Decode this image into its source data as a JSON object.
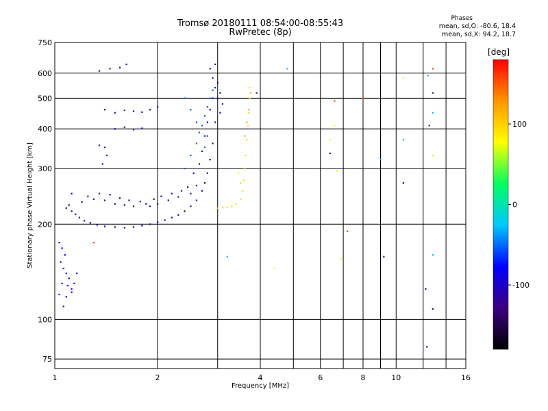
{
  "header": {
    "title_line1": "Tromsø 20180111 08:54:00-08:55:43",
    "title_line2": "RwPretec (8p)",
    "phases_title": "Phases",
    "phases_o": "mean, sd,O: -80.6, 18.4",
    "phases_x": "mean, sd,X:  94.2, 18.7"
  },
  "colorbar": {
    "unit_label": "deg",
    "ticks": [
      {
        "label": "100",
        "value": 100
      },
      {
        "label": "0",
        "value": 0
      },
      {
        "label": "-100",
        "value": -100
      }
    ],
    "range": [
      -180,
      180
    ],
    "palette": [
      "#000000",
      "#3b0080",
      "#0000ff",
      "#00c8ff",
      "#00ff60",
      "#ffff00",
      "#ff9600",
      "#ff0000"
    ]
  },
  "chart_data": {
    "type": "scatter",
    "xlabel": "Frequency [MHz]",
    "ylabel": "Stationary phase Virtual Height [km]",
    "xscale": "log",
    "yscale": "log",
    "xlim": [
      1,
      16
    ],
    "ylim": [
      70,
      750
    ],
    "xticks": [
      {
        "label": "1",
        "value": 1
      },
      {
        "label": "2",
        "value": 2
      },
      {
        "label": "4",
        "value": 4
      },
      {
        "label": "6",
        "value": 6
      },
      {
        "label": "8",
        "value": 8
      },
      {
        "label": "10",
        "value": 10
      },
      {
        "label": "16",
        "value": 16
      }
    ],
    "x_gridlines": [
      1,
      2,
      3,
      4,
      5,
      6,
      7,
      8,
      9,
      10,
      12,
      14,
      16
    ],
    "yticks": [
      {
        "label": "750",
        "value": 750
      },
      {
        "label": "600",
        "value": 600
      },
      {
        "label": "500",
        "value": 500
      },
      {
        "label": "400",
        "value": 400
      },
      {
        "label": "300",
        "value": 300
      },
      {
        "label": "200",
        "value": 200
      },
      {
        "label": "100",
        "value": 100
      },
      {
        "label": "75",
        "value": 75
      }
    ],
    "grid": true,
    "series": [
      {
        "mode": "O",
        "phase_deg": -110,
        "points": [
          [
            1.08,
            225
          ],
          [
            1.12,
            220
          ],
          [
            1.15,
            215
          ],
          [
            1.18,
            210
          ],
          [
            1.22,
            205
          ],
          [
            1.27,
            202
          ],
          [
            1.33,
            199
          ],
          [
            1.4,
            197
          ],
          [
            1.5,
            196
          ],
          [
            1.6,
            195
          ],
          [
            1.7,
            196
          ],
          [
            1.8,
            198
          ],
          [
            1.9,
            200
          ],
          [
            2.0,
            203
          ],
          [
            2.1,
            206
          ],
          [
            2.2,
            210
          ],
          [
            2.3,
            214
          ],
          [
            2.4,
            220
          ],
          [
            2.5,
            228
          ],
          [
            2.6,
            238
          ],
          [
            2.7,
            255
          ],
          [
            2.75,
            270
          ],
          [
            2.8,
            290
          ],
          [
            2.85,
            320
          ],
          [
            2.9,
            360
          ],
          [
            2.95,
            420
          ],
          [
            3.0,
            500
          ],
          [
            3.0,
            560
          ]
        ]
      },
      {
        "mode": "O",
        "phase_deg": -115,
        "points": [
          [
            1.1,
            230
          ],
          [
            1.2,
            235
          ],
          [
            1.3,
            240
          ],
          [
            1.4,
            238
          ],
          [
            1.5,
            232
          ],
          [
            1.6,
            230
          ],
          [
            1.7,
            228
          ],
          [
            1.85,
            232
          ],
          [
            1.95,
            240
          ],
          [
            2.05,
            245
          ],
          [
            2.2,
            250
          ],
          [
            2.35,
            255
          ],
          [
            2.45,
            262
          ],
          [
            1.12,
            250
          ],
          [
            1.25,
            245
          ],
          [
            1.35,
            250
          ],
          [
            1.45,
            248
          ],
          [
            1.55,
            242
          ],
          [
            1.65,
            238
          ],
          [
            1.78,
            236
          ],
          [
            1.9,
            228
          ],
          [
            2.0,
            232
          ],
          [
            2.15,
            238
          ],
          [
            2.3,
            244
          ],
          [
            2.5,
            250
          ],
          [
            2.6,
            265
          ]
        ]
      },
      {
        "mode": "O",
        "phase_deg": -100,
        "points": [
          [
            2.55,
            290
          ],
          [
            2.65,
            310
          ],
          [
            2.7,
            340
          ],
          [
            2.75,
            380
          ],
          [
            2.8,
            420
          ],
          [
            2.85,
            460
          ],
          [
            2.9,
            500
          ],
          [
            2.95,
            540
          ],
          [
            2.9,
            580
          ],
          [
            2.85,
            620
          ],
          [
            2.95,
            640
          ],
          [
            3.05,
            520
          ],
          [
            3.1,
            480
          ],
          [
            3.05,
            450
          ]
        ]
      },
      {
        "mode": "O",
        "phase_deg": -55,
        "points": [
          [
            2.4,
            300
          ],
          [
            2.5,
            330
          ],
          [
            2.6,
            360
          ],
          [
            2.65,
            390
          ],
          [
            2.7,
            410
          ],
          [
            2.75,
            440
          ],
          [
            2.8,
            470
          ],
          [
            2.85,
            500
          ],
          [
            2.9,
            530
          ],
          [
            2.75,
            350
          ],
          [
            2.8,
            380
          ],
          [
            2.6,
            420
          ],
          [
            2.5,
            460
          ],
          [
            2.4,
            500
          ]
        ]
      },
      {
        "mode": "O",
        "phase_deg": -105,
        "points": [
          [
            1.5,
            400
          ],
          [
            1.6,
            405
          ],
          [
            1.7,
            398
          ],
          [
            1.8,
            402
          ],
          [
            1.5,
            450
          ],
          [
            1.6,
            458
          ],
          [
            1.7,
            455
          ],
          [
            1.8,
            452
          ],
          [
            1.9,
            460
          ],
          [
            2.0,
            470
          ],
          [
            1.4,
            460
          ],
          [
            1.35,
            355
          ],
          [
            1.4,
            350
          ],
          [
            1.42,
            330
          ],
          [
            1.38,
            310
          ],
          [
            1.35,
            610
          ],
          [
            1.45,
            620
          ],
          [
            1.55,
            625
          ],
          [
            1.62,
            640
          ]
        ]
      },
      {
        "mode": "O",
        "phase_deg": -80,
        "points": [
          [
            1.03,
            175
          ],
          [
            1.05,
            168
          ],
          [
            1.07,
            160
          ],
          [
            1.04,
            152
          ],
          [
            1.06,
            145
          ],
          [
            1.08,
            140
          ],
          [
            1.1,
            135
          ],
          [
            1.05,
            130
          ],
          [
            1.09,
            128
          ],
          [
            1.12,
            125
          ],
          [
            1.14,
            130
          ],
          [
            1.16,
            140
          ],
          [
            1.03,
            120
          ],
          [
            1.08,
            118
          ],
          [
            1.12,
            122
          ],
          [
            1.06,
            110
          ]
        ]
      },
      {
        "mode": "X",
        "phase_deg": 95,
        "points": [
          [
            3.0,
            225
          ],
          [
            3.1,
            226
          ],
          [
            3.2,
            226
          ],
          [
            3.3,
            228
          ],
          [
            3.4,
            232
          ],
          [
            3.5,
            240
          ],
          [
            3.55,
            255
          ],
          [
            3.58,
            275
          ],
          [
            3.6,
            300
          ],
          [
            3.62,
            330
          ],
          [
            3.65,
            370
          ],
          [
            3.68,
            410
          ],
          [
            3.7,
            450
          ],
          [
            3.72,
            500
          ],
          [
            3.72,
            540
          ],
          [
            3.5,
            270
          ],
          [
            3.45,
            290
          ]
        ]
      },
      {
        "mode": "X",
        "phase_deg": 120,
        "points": [
          [
            3.6,
            380
          ],
          [
            3.65,
            420
          ],
          [
            3.7,
            460
          ],
          [
            3.75,
            520
          ]
        ]
      },
      {
        "mode": "noise",
        "phase_deg": 160,
        "points": [
          [
            6.6,
            490
          ],
          [
            8.0,
            500
          ],
          [
            7.2,
            190
          ],
          [
            12.8,
            620
          ],
          [
            1.3,
            175
          ]
        ]
      },
      {
        "mode": "noise",
        "phase_deg": 70,
        "points": [
          [
            6.4,
            370
          ],
          [
            6.6,
            410
          ],
          [
            6.7,
            295
          ],
          [
            12.8,
            330
          ],
          [
            6.9,
            155
          ],
          [
            4.4,
            145
          ],
          [
            10.5,
            580
          ]
        ]
      },
      {
        "mode": "noise",
        "phase_deg": -130,
        "points": [
          [
            6.4,
            335
          ],
          [
            9.2,
            158
          ],
          [
            12.5,
            410
          ],
          [
            12.8,
            520
          ],
          [
            12.2,
            125
          ],
          [
            12.3,
            82
          ],
          [
            12.8,
            108
          ],
          [
            10.5,
            270
          ],
          [
            3.9,
            520
          ]
        ]
      },
      {
        "mode": "noise",
        "phase_deg": -30,
        "points": [
          [
            3.2,
            158
          ],
          [
            9.0,
            320
          ],
          [
            10.5,
            370
          ],
          [
            12.8,
            160
          ],
          [
            12.8,
            450
          ],
          [
            4.8,
            620
          ],
          [
            12.4,
            590
          ]
        ]
      }
    ]
  }
}
